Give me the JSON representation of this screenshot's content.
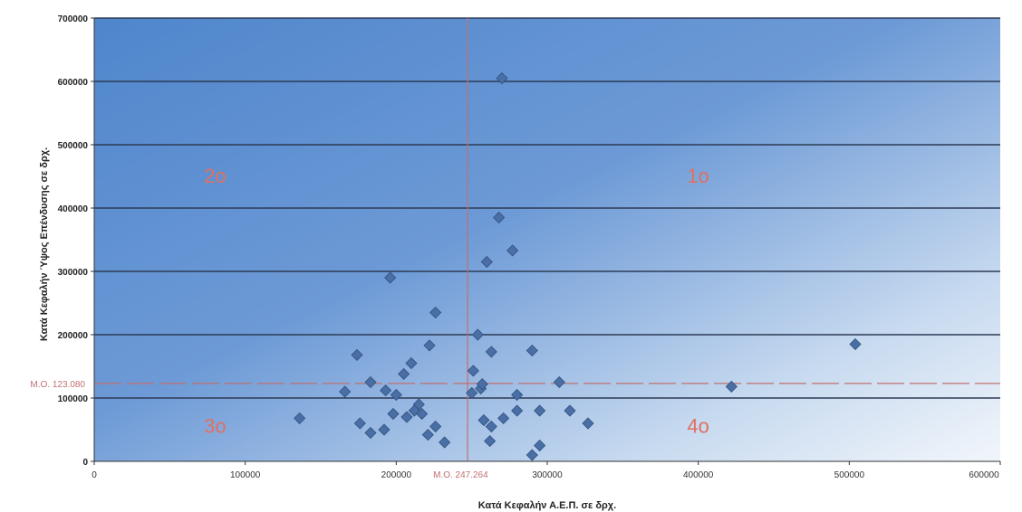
{
  "chart_data": {
    "type": "scatter",
    "title": "",
    "xlabel": "Κατά Κεφαλήν Α.Ε.Π. σε δρχ.",
    "ylabel": "Κατά Κεφαλήν Ύψος Επένδυσης σε δρχ.",
    "xlim": [
      0,
      600000
    ],
    "ylim": [
      0,
      700000
    ],
    "x_ticks": [
      0,
      100000,
      200000,
      300000,
      400000,
      500000,
      600000
    ],
    "x_tick_labels": [
      "0",
      "100000",
      "200000",
      "300000",
      "400000",
      "500000",
      "600000"
    ],
    "y_ticks": [
      0,
      100000,
      200000,
      300000,
      400000,
      500000,
      600000,
      700000
    ],
    "y_tick_labels": [
      "0",
      "100000",
      "200000",
      "300000",
      "400000",
      "500000",
      "600000",
      "700000"
    ],
    "grid": "horizontal",
    "colors": {
      "plot_top": "#4f86cc",
      "plot_bottom_right": "#f2f6fb",
      "marker": "#4a6fa5",
      "mean_line": "#c07070",
      "quadrant_label": "#e07060"
    },
    "reference_lines": {
      "x_mean": {
        "value": 247264,
        "label": "M.O. 247.264"
      },
      "y_mean": {
        "value": 123080,
        "label": "M.O. 123.080"
      }
    },
    "quadrant_labels": [
      {
        "text": "1ο",
        "x": 400000,
        "y": 440000
      },
      {
        "text": "2ο",
        "x": 80000,
        "y": 440000
      },
      {
        "text": "3ο",
        "x": 80000,
        "y": 45000
      },
      {
        "text": "4ο",
        "x": 400000,
        "y": 45000
      }
    ],
    "points": [
      [
        270000,
        605000
      ],
      [
        268000,
        385000
      ],
      [
        277000,
        333000
      ],
      [
        260000,
        315000
      ],
      [
        196000,
        290000
      ],
      [
        226000,
        235000
      ],
      [
        222000,
        183000
      ],
      [
        174000,
        168000
      ],
      [
        210000,
        155000
      ],
      [
        205000,
        138000
      ],
      [
        166000,
        110000
      ],
      [
        183000,
        125000
      ],
      [
        193000,
        112000
      ],
      [
        200000,
        105000
      ],
      [
        215000,
        90000
      ],
      [
        198000,
        75000
      ],
      [
        207000,
        70000
      ],
      [
        217000,
        75000
      ],
      [
        226000,
        55000
      ],
      [
        232000,
        30000
      ],
      [
        212000,
        80000
      ],
      [
        176000,
        60000
      ],
      [
        183000,
        45000
      ],
      [
        192000,
        50000
      ],
      [
        221000,
        42000
      ],
      [
        136000,
        68000
      ],
      [
        250000,
        108000
      ],
      [
        254000,
        200000
      ],
      [
        263000,
        173000
      ],
      [
        290000,
        175000
      ],
      [
        256000,
        115000
      ],
      [
        257000,
        122000
      ],
      [
        251000,
        143000
      ],
      [
        258000,
        65000
      ],
      [
        263000,
        55000
      ],
      [
        280000,
        105000
      ],
      [
        280000,
        80000
      ],
      [
        262000,
        32000
      ],
      [
        271000,
        68000
      ],
      [
        295000,
        80000
      ],
      [
        295000,
        25000
      ],
      [
        290000,
        10000
      ],
      [
        308000,
        125000
      ],
      [
        315000,
        80000
      ],
      [
        327000,
        60000
      ],
      [
        422000,
        118000
      ],
      [
        504000,
        185000
      ]
    ]
  }
}
